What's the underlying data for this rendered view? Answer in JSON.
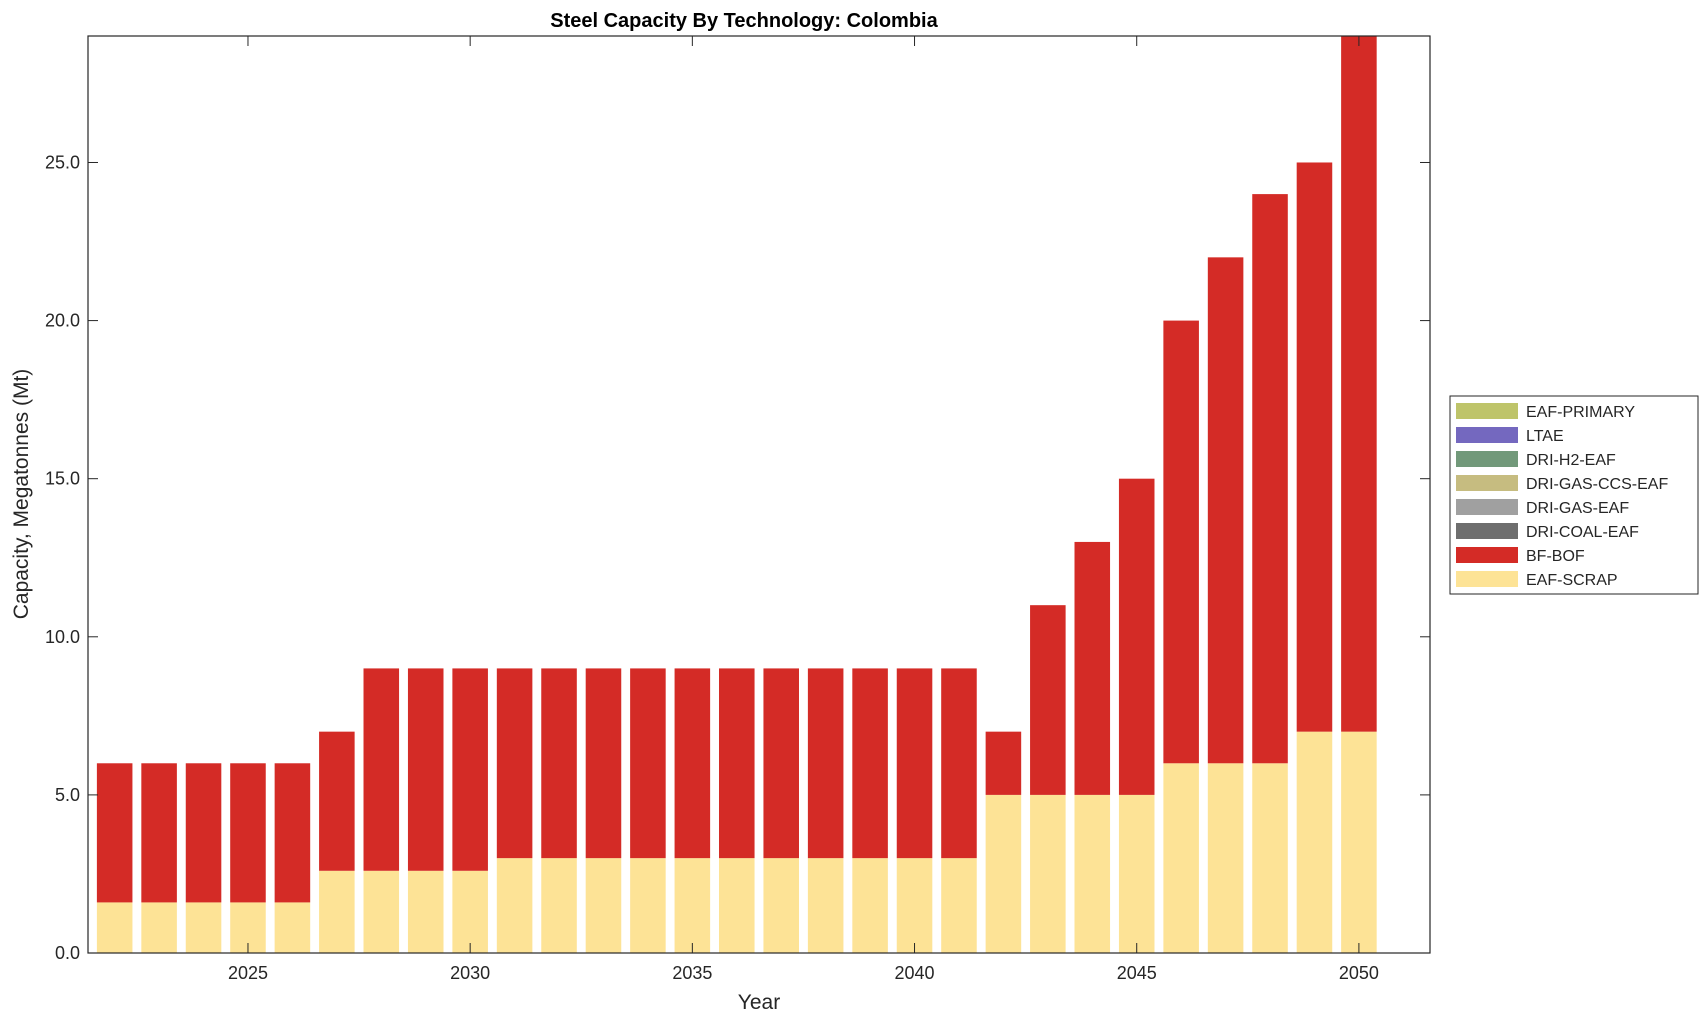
{
  "chart_data": {
    "type": "bar",
    "stacked": true,
    "title": "Steel Capacity By Technology: Colombia",
    "xlabel": "Year",
    "ylabel": "Capacity, Megatonnes (Mt)",
    "xlim": [
      2021.4,
      2051.6
    ],
    "ylim": [
      0,
      29
    ],
    "xticks": [
      2025,
      2030,
      2035,
      2040,
      2045,
      2050
    ],
    "yticks": [
      0,
      5,
      10,
      15,
      20,
      25
    ],
    "ytick_labels": [
      "0.0",
      "5.0",
      "10.0",
      "15.0",
      "20.0",
      "25.0"
    ],
    "legend_position": "right",
    "categories": [
      2022,
      2023,
      2024,
      2025,
      2026,
      2027,
      2028,
      2029,
      2030,
      2031,
      2032,
      2033,
      2034,
      2035,
      2036,
      2037,
      2038,
      2039,
      2040,
      2041,
      2042,
      2043,
      2044,
      2045,
      2046,
      2047,
      2048,
      2049,
      2050
    ],
    "series": [
      {
        "name": "EAF-SCRAP",
        "color": "#fde396",
        "values": [
          1.6,
          1.6,
          1.6,
          1.6,
          1.6,
          2.6,
          2.6,
          2.6,
          2.6,
          3,
          3,
          3,
          3,
          3,
          3,
          3,
          3,
          3,
          3,
          3,
          5,
          5,
          5,
          5,
          6,
          6,
          6,
          7,
          7
        ]
      },
      {
        "name": "BF-BOF",
        "color": "#d42b26",
        "values": [
          4.4,
          4.4,
          4.4,
          4.4,
          4.4,
          4.4,
          6.4,
          6.4,
          6.4,
          6,
          6,
          6,
          6,
          6,
          6,
          6,
          6,
          6,
          6,
          6,
          2,
          6,
          8,
          10,
          14,
          16,
          18,
          18,
          22
        ]
      },
      {
        "name": "DRI-COAL-EAF",
        "color": "#6e6e6e",
        "values": [
          0,
          0,
          0,
          0,
          0,
          0,
          0,
          0,
          0,
          0,
          0,
          0,
          0,
          0,
          0,
          0,
          0,
          0,
          0,
          0,
          0,
          0,
          0,
          0,
          0,
          0,
          0,
          0,
          0
        ]
      },
      {
        "name": "DRI-GAS-EAF",
        "color": "#a0a0a0",
        "values": [
          0,
          0,
          0,
          0,
          0,
          0,
          0,
          0,
          0,
          0,
          0,
          0,
          0,
          0,
          0,
          0,
          0,
          0,
          0,
          0,
          0,
          0,
          0,
          0,
          0,
          0,
          0,
          0,
          0
        ]
      },
      {
        "name": "DRI-GAS-CCS-EAF",
        "color": "#c6bc80",
        "values": [
          0,
          0,
          0,
          0,
          0,
          0,
          0,
          0,
          0,
          0,
          0,
          0,
          0,
          0,
          0,
          0,
          0,
          0,
          0,
          0,
          0,
          0,
          0,
          0,
          0,
          0,
          0,
          0,
          0
        ]
      },
      {
        "name": "DRI-H2-EAF",
        "color": "#72997a",
        "values": [
          0,
          0,
          0,
          0,
          0,
          0,
          0,
          0,
          0,
          0,
          0,
          0,
          0,
          0,
          0,
          0,
          0,
          0,
          0,
          0,
          0,
          0,
          0,
          0,
          0,
          0,
          0,
          0,
          0
        ]
      },
      {
        "name": "LTAE",
        "color": "#7468bf",
        "values": [
          0,
          0,
          0,
          0,
          0,
          0,
          0,
          0,
          0,
          0,
          0,
          0,
          0,
          0,
          0,
          0,
          0,
          0,
          0,
          0,
          0,
          0,
          0,
          0,
          0,
          0,
          0,
          0,
          0
        ]
      },
      {
        "name": "EAF-PRIMARY",
        "color": "#bec46a",
        "values": [
          0,
          0,
          0,
          0,
          0,
          0,
          0,
          0,
          0,
          0,
          0,
          0,
          0,
          0,
          0,
          0,
          0,
          0,
          0,
          0,
          0,
          0,
          0,
          0,
          0,
          0,
          0,
          0,
          0
        ]
      }
    ],
    "legend_order": [
      "EAF-PRIMARY",
      "LTAE",
      "DRI-H2-EAF",
      "DRI-GAS-CCS-EAF",
      "DRI-GAS-EAF",
      "DRI-COAL-EAF",
      "BF-BOF",
      "EAF-SCRAP"
    ]
  }
}
